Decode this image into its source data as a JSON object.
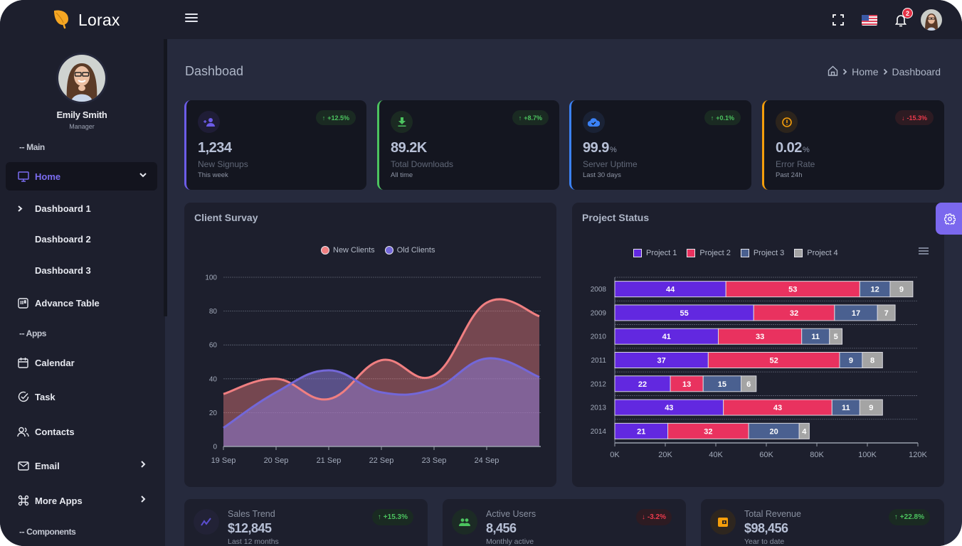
{
  "app": {
    "name": "Lorax",
    "notifications_count": "2"
  },
  "user": {
    "name": "Emily Smith",
    "role": "Manager"
  },
  "sidebar": {
    "sections": [
      {
        "label": "-- Main"
      },
      {
        "label": "-- Apps"
      },
      {
        "label": "-- Components"
      }
    ],
    "items": [
      {
        "label": "Home",
        "icon": "monitor-icon",
        "active": true
      },
      {
        "label": "Advance Table",
        "icon": "table-icon"
      },
      {
        "label": "Calendar",
        "icon": "calendar-icon"
      },
      {
        "label": "Task",
        "icon": "check-circle-icon"
      },
      {
        "label": "Contacts",
        "icon": "users-icon"
      },
      {
        "label": "Email",
        "icon": "mail-icon"
      },
      {
        "label": "More Apps",
        "icon": "command-icon"
      }
    ],
    "home_sub": [
      {
        "label": "Dashboard 1",
        "current": true
      },
      {
        "label": "Dashboard 2"
      },
      {
        "label": "Dashboard 3"
      }
    ]
  },
  "page": {
    "title": "Dashboad",
    "breadcrumb": [
      "Home",
      "Dashboard"
    ]
  },
  "stats": [
    {
      "value": "1,234",
      "unit": "",
      "label": "New Signups",
      "sub": "This week",
      "change": "+12.5%",
      "direction": "up",
      "accent": "#6c5ce7",
      "icon": "user-plus-icon"
    },
    {
      "value": "89.2K",
      "unit": "",
      "label": "Total Downloads",
      "sub": "All time",
      "change": "+8.7%",
      "direction": "up",
      "accent": "#4cc35f",
      "icon": "download-icon"
    },
    {
      "value": "99.9",
      "unit": "%",
      "label": "Server Uptime",
      "sub": "Last 30 days",
      "change": "+0.1%",
      "direction": "up",
      "accent": "#3b82f6",
      "icon": "cloud-check-icon"
    },
    {
      "value": "0.02",
      "unit": "%",
      "label": "Error Rate",
      "sub": "Past 24h",
      "change": "-15.3%",
      "direction": "down",
      "accent": "#f59e0b",
      "icon": "alert-circle-icon"
    }
  ],
  "client_survey": {
    "title": "Client Survay"
  },
  "project_status": {
    "title": "Project Status"
  },
  "bottom_cards": [
    {
      "label": "Sales Trend",
      "value": "$12,845",
      "sub": "Last 12 months",
      "change": "+15.3%",
      "direction": "up",
      "icon": "trend-icon"
    },
    {
      "label": "Active Users",
      "value": "8,456",
      "sub": "Monthly active",
      "change": "-3.2%",
      "direction": "down",
      "icon": "group-icon"
    },
    {
      "label": "Total Revenue",
      "value": "$98,456",
      "sub": "Year to date",
      "change": "+22.8%",
      "direction": "up",
      "icon": "wallet-icon"
    }
  ],
  "chart_data": [
    {
      "type": "area",
      "title": "Client Survay",
      "x": [
        "19 Sep",
        "20 Sep",
        "21 Sep",
        "22 Sep",
        "23 Sep",
        "24 Sep",
        ""
      ],
      "series": [
        {
          "name": "New Clients",
          "values": [
            31,
            40,
            28,
            51,
            42,
            85,
            77
          ],
          "color": "#f07f81"
        },
        {
          "name": "Old Clients",
          "values": [
            11,
            32,
            45,
            32,
            34,
            52,
            41
          ],
          "color": "#7367d8"
        }
      ],
      "xlabel": "",
      "ylabel": "",
      "ylim": [
        0,
        100
      ],
      "yticks": [
        0,
        20,
        40,
        60,
        80,
        100
      ],
      "grid": true,
      "legend": "top-center"
    },
    {
      "type": "bar",
      "orientation": "horizontal",
      "stacked": true,
      "title": "Project Status",
      "categories": [
        "2008",
        "2009",
        "2010",
        "2011",
        "2012",
        "2013",
        "2014"
      ],
      "series": [
        {
          "name": "Project 1",
          "values": [
            44,
            55,
            41,
            37,
            22,
            43,
            21
          ],
          "color": "#6228e0"
        },
        {
          "name": "Project 2",
          "values": [
            53,
            32,
            33,
            52,
            13,
            43,
            32
          ],
          "color": "#e9325f"
        },
        {
          "name": "Project 3",
          "values": [
            12,
            17,
            11,
            9,
            15,
            11,
            20
          ],
          "color": "#4a6090"
        },
        {
          "name": "Project 4",
          "values": [
            9,
            7,
            5,
            8,
            6,
            9,
            4
          ],
          "color": "#a4a4a4"
        }
      ],
      "value_scale": 1000,
      "xlim": [
        0,
        120000
      ],
      "xticks": [
        "0K",
        "20K",
        "40K",
        "60K",
        "80K",
        "100K",
        "120K"
      ],
      "grid": true,
      "legend": "top-center"
    }
  ]
}
